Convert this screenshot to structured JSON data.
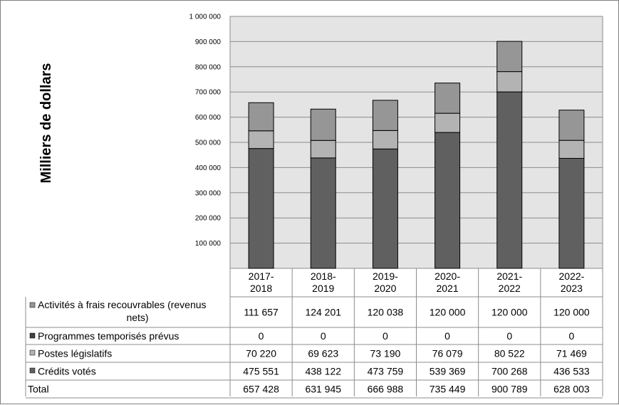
{
  "chart_data": {
    "type": "bar",
    "stacked": true,
    "ylabel": "Milliers de dollars",
    "ylim": [
      0,
      1000000
    ],
    "yticks": [
      100000,
      200000,
      300000,
      400000,
      500000,
      600000,
      700000,
      800000,
      900000,
      1000000
    ],
    "ytick_labels": [
      "100 000",
      "200 000",
      "300 000",
      "400 000",
      "500 000",
      "600 000",
      "700 000",
      "800 000",
      "900 000",
      "1 000 000"
    ],
    "grid": true,
    "categories": [
      "2017-2018",
      "2018-2019",
      "2019-2020",
      "2020-2021",
      "2021-2022",
      "2022-2023"
    ],
    "category_lines": [
      [
        "2017-",
        "2018"
      ],
      [
        "2018-",
        "2019"
      ],
      [
        "2019-",
        "2020"
      ],
      [
        "2020-",
        "2021"
      ],
      [
        "2021-",
        "2022"
      ],
      [
        "2022-",
        "2023"
      ]
    ],
    "series": [
      {
        "name": "Crédits votés",
        "label_lines": [
          "Crédits votés"
        ],
        "color": "#606060",
        "values": [
          475551,
          438122,
          473759,
          539369,
          700268,
          436533
        ],
        "display": [
          "475 551",
          "438 122",
          "473 759",
          "539 369",
          "700 268",
          "436 533"
        ]
      },
      {
        "name": "Postes législatifs",
        "label_lines": [
          "Postes législatifs"
        ],
        "color": "#b3b3b3",
        "values": [
          70220,
          69623,
          73190,
          76079,
          80522,
          71469
        ],
        "display": [
          "70 220",
          "69 623",
          "73 190",
          "76 079",
          "80 522",
          "71 469"
        ]
      },
      {
        "name": "Programmes temporisés prévus",
        "label_lines": [
          "Programmes temporisés prévus"
        ],
        "color": "#404040",
        "values": [
          0,
          0,
          0,
          0,
          0,
          0
        ],
        "display": [
          "0",
          "0",
          "0",
          "0",
          "0",
          "0"
        ]
      },
      {
        "name": "Activités à frais recouvrables (revenus nets)",
        "label_lines": [
          "Activités à frais recouvrables (revenus",
          "nets)"
        ],
        "color": "#969696",
        "values": [
          111657,
          124201,
          120038,
          120000,
          120000,
          120000
        ],
        "display": [
          "111 657",
          "124 201",
          "120 038",
          "120 000",
          "120 000",
          "120 000"
        ]
      }
    ],
    "total": {
      "name": "Total",
      "values": [
        657428,
        631945,
        666988,
        735449,
        900789,
        628003
      ],
      "display": [
        "657 428",
        "631 945",
        "666 988",
        "735 449",
        "900 789",
        "628 003"
      ]
    }
  }
}
